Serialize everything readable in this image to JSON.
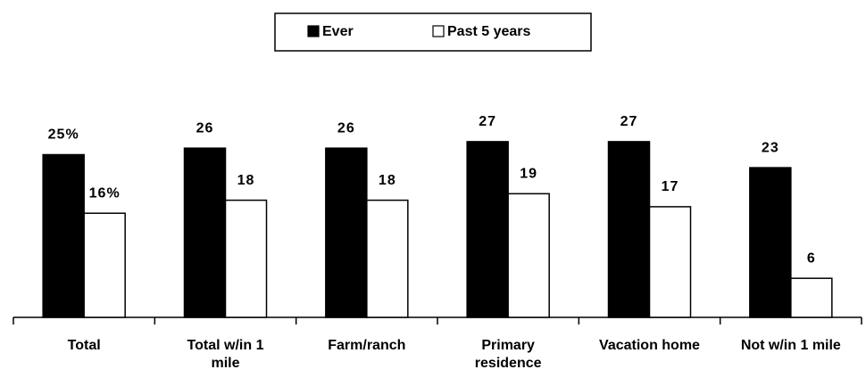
{
  "chart_data": {
    "type": "bar",
    "categories": [
      "Total",
      "Total w/in 1 mile",
      "Farm/ranch",
      "Primary residence",
      "Vacation home",
      "Not w/in 1 mile"
    ],
    "series": [
      {
        "name": "Ever",
        "color": "#000000",
        "values": [
          25,
          26,
          26,
          27,
          27,
          23
        ],
        "value_labels": [
          "25%",
          "26",
          "26",
          "27",
          "27",
          "23"
        ]
      },
      {
        "name": "Past 5 years",
        "color": "#ffffff",
        "values": [
          16,
          18,
          18,
          19,
          17,
          6
        ],
        "value_labels": [
          "16%",
          "18",
          "18",
          "19",
          "17",
          "6"
        ]
      }
    ],
    "legend": "top"
  }
}
